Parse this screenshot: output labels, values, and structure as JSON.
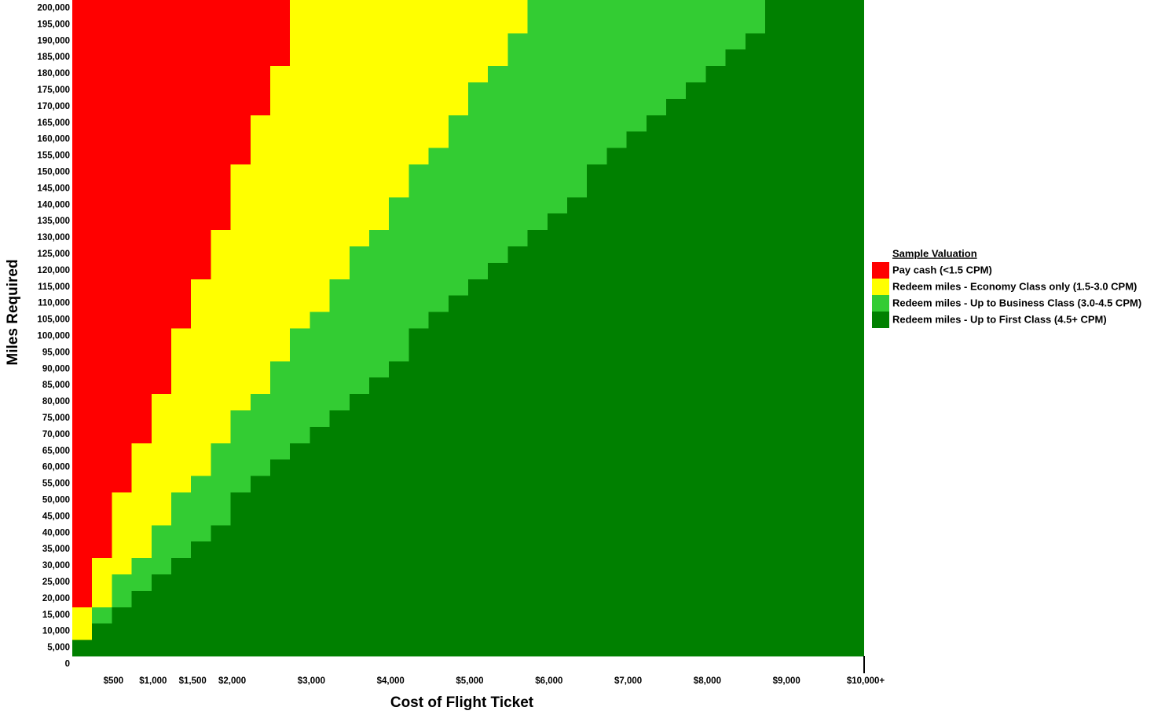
{
  "chart_data": {
    "type": "bar",
    "orientation": "horizontal",
    "stacked": true,
    "x_label": "Cost of Flight Ticket",
    "y_label": "Miles Required",
    "legend_title": "Sample Valuation",
    "legend_position": "right",
    "categories": [
      "0",
      "5,000",
      "10,000",
      "15,000",
      "20,000",
      "25,000",
      "30,000",
      "35,000",
      "40,000",
      "45,000",
      "50,000",
      "55,000",
      "60,000",
      "65,000",
      "70,000",
      "75,000",
      "80,000",
      "85,000",
      "90,000",
      "95,000",
      "100,000",
      "105,000",
      "110,000",
      "115,000",
      "120,000",
      "125,000",
      "130,000",
      "135,000",
      "140,000",
      "145,000",
      "150,000",
      "155,000",
      "160,000",
      "165,000",
      "170,000",
      "175,000",
      "180,000",
      "185,000",
      "190,000",
      "195,000",
      "200,000"
    ],
    "series": [
      {
        "name": "Pay cash (<1.5 CPM)",
        "color": "#ff0000",
        "values": [
          null,
          0,
          0,
          0,
          250,
          250,
          250,
          500,
          500,
          500,
          500,
          750,
          750,
          750,
          1000,
          1000,
          1000,
          1250,
          1250,
          1250,
          1250,
          1500,
          1500,
          1500,
          1750,
          1750,
          1750,
          2000,
          2000,
          2000,
          2000,
          2250,
          2250,
          2250,
          2500,
          2500,
          2500,
          2750,
          2750,
          2750,
          2750
        ]
      },
      {
        "name": "Redeem miles - Economy Class only (1.5-3.0 CPM)",
        "color": "#ffff00",
        "values": [
          null,
          0,
          250,
          250,
          250,
          250,
          500,
          500,
          500,
          750,
          750,
          750,
          1000,
          1000,
          1000,
          1000,
          1250,
          1250,
          1250,
          1500,
          1500,
          1500,
          1750,
          1750,
          1750,
          1750,
          2000,
          2000,
          2000,
          2250,
          2250,
          2250,
          2500,
          2500,
          2500,
          2500,
          2750,
          2750,
          2750,
          3000,
          3000
        ]
      },
      {
        "name": "Redeem miles - Up to Business Class (3.0-4.5 CPM)",
        "color": "#33cc33",
        "values": [
          null,
          0,
          0,
          250,
          250,
          500,
          500,
          500,
          750,
          750,
          750,
          750,
          750,
          1000,
          1000,
          1250,
          1250,
          1250,
          1500,
          1500,
          1500,
          1500,
          1500,
          1750,
          1750,
          2000,
          2000,
          2000,
          2250,
          2250,
          2250,
          2250,
          2250,
          2500,
          2500,
          2750,
          2750,
          2750,
          3000,
          3000,
          3000
        ]
      },
      {
        "name": "Redeem miles - Up to First Class (4.5+ CPM)",
        "color": "#008000",
        "values": [
          null,
          10000,
          9750,
          9500,
          9250,
          9000,
          8750,
          8500,
          8250,
          8000,
          8000,
          7750,
          7500,
          7250,
          7000,
          6750,
          6500,
          6250,
          6000,
          5750,
          5750,
          5500,
          5250,
          5000,
          4750,
          4500,
          4250,
          4000,
          3750,
          3500,
          3500,
          3250,
          3000,
          2750,
          2500,
          2250,
          2000,
          1750,
          1500,
          1250,
          1250
        ]
      }
    ],
    "xlim": [
      0,
      10000
    ],
    "xticks": [
      {
        "value": 500,
        "label": "$500"
      },
      {
        "value": 1000,
        "label": "$1,000"
      },
      {
        "value": 1500,
        "label": "$1,500"
      },
      {
        "value": 2000,
        "label": "$2,000"
      },
      {
        "value": 3000,
        "label": "$3,000"
      },
      {
        "value": 4000,
        "label": "$4,000"
      },
      {
        "value": 5000,
        "label": "$5,000"
      },
      {
        "value": 6000,
        "label": "$6,000"
      },
      {
        "value": 7000,
        "label": "$7,000"
      },
      {
        "value": 8000,
        "label": "$8,000"
      },
      {
        "value": 9000,
        "label": "$9,000"
      },
      {
        "value": 10000,
        "label": "$10,000+"
      }
    ]
  }
}
